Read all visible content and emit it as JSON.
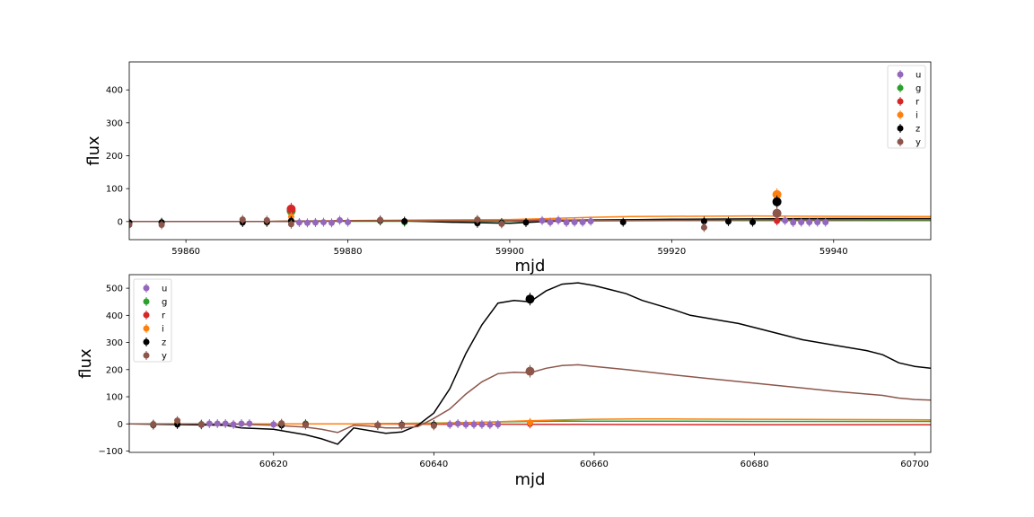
{
  "chart_data": [
    {
      "type": "scatter",
      "xlabel": "mjd",
      "ylabel": "flux",
      "xlim": [
        59853,
        59952
      ],
      "ylim": [
        -55,
        485
      ],
      "xticks": [
        59860,
        59880,
        59900,
        59920,
        59940
      ],
      "yticks": [
        0,
        100,
        200,
        300,
        400
      ],
      "legend_position": "upper right",
      "legend": [
        "u",
        "g",
        "r",
        "i",
        "z",
        "y"
      ],
      "series": [
        {
          "name": "u",
          "color": "#9467bd",
          "points": [
            [
              59874,
              -3
            ],
            [
              59875,
              -4
            ],
            [
              59876,
              -3
            ],
            [
              59877,
              -2
            ],
            [
              59878,
              -4
            ],
            [
              59879,
              4
            ],
            [
              59880,
              -2
            ],
            [
              59904,
              3
            ],
            [
              59905,
              -2
            ],
            [
              59906,
              4
            ],
            [
              59907,
              -3
            ],
            [
              59908,
              -2
            ],
            [
              59909,
              -2
            ],
            [
              59910,
              1
            ],
            [
              59934,
              3
            ],
            [
              59935,
              -3
            ],
            [
              59936,
              -2
            ],
            [
              59937,
              -2
            ],
            [
              59938,
              -2
            ],
            [
              59939,
              -2
            ]
          ],
          "model_x": [],
          "model_y": []
        },
        {
          "name": "g",
          "color": "#2ca02c",
          "points": [
            [
              59853,
              -3
            ],
            [
              59857,
              -2
            ],
            [
              59873,
              32
            ],
            [
              59884,
              2
            ],
            [
              59887,
              -2
            ],
            [
              59896,
              5
            ],
            [
              59899,
              -3
            ]
          ],
          "model_x": [
            59853,
            59870,
            59880,
            59890,
            59900,
            59910,
            59920,
            59930,
            59940,
            59952
          ],
          "model_y": [
            0,
            0,
            1,
            1,
            1,
            2,
            3,
            3,
            3,
            3
          ]
        },
        {
          "name": "r",
          "color": "#d62728",
          "points": [
            [
              59873,
              38
            ],
            [
              59933,
              2
            ]
          ],
          "model_x": [
            59853,
            59870,
            59880,
            59890,
            59900,
            59910,
            59920,
            59930,
            59940,
            59952
          ],
          "model_y": [
            0,
            0,
            2,
            3,
            4,
            5,
            6,
            6,
            6,
            6
          ]
        },
        {
          "name": "i",
          "color": "#ff7f0e",
          "points": [
            [
              59853,
              -4
            ],
            [
              59870,
              -2
            ],
            [
              59873,
              15
            ],
            [
              59933,
              82
            ]
          ],
          "model_x": [
            59853,
            59870,
            59880,
            59890,
            59900,
            59905,
            59910,
            59915,
            59920,
            59930,
            59940,
            59952
          ],
          "model_y": [
            0,
            0,
            3,
            5,
            6,
            9,
            13,
            15,
            16,
            17,
            16,
            15
          ]
        },
        {
          "name": "z",
          "color": "#000000",
          "points": [
            [
              59853,
              -3
            ],
            [
              59857,
              -3
            ],
            [
              59867,
              -3
            ],
            [
              59870,
              -2
            ],
            [
              59873,
              2
            ],
            [
              59884,
              3
            ],
            [
              59887,
              1
            ],
            [
              59896,
              -5
            ],
            [
              59899,
              -4
            ],
            [
              59902,
              -3
            ],
            [
              59914,
              -2
            ],
            [
              59924,
              1
            ],
            [
              59927,
              0
            ],
            [
              59930,
              -2
            ],
            [
              59933,
              60
            ]
          ],
          "model_x": [
            59853,
            59870,
            59880,
            59887,
            59893,
            59900,
            59905,
            59910,
            59920,
            59930,
            59940,
            59952
          ],
          "model_y": [
            0,
            0,
            2,
            2,
            -2,
            -5,
            1,
            4,
            7,
            8,
            9,
            9
          ]
        },
        {
          "name": "y",
          "color": "#8c564b",
          "points": [
            [
              59853,
              -10
            ],
            [
              59857,
              -10
            ],
            [
              59867,
              6
            ],
            [
              59870,
              4
            ],
            [
              59873,
              -8
            ],
            [
              59884,
              5
            ],
            [
              59896,
              6
            ],
            [
              59899,
              -7
            ],
            [
              59924,
              -18
            ],
            [
              59933,
              25
            ]
          ],
          "model_x": [
            59853,
            59870,
            59880,
            59890,
            59900,
            59910,
            59920,
            59930,
            59940,
            59952
          ],
          "model_y": [
            0,
            0,
            2,
            2,
            2,
            3,
            4,
            5,
            5,
            6
          ]
        }
      ]
    },
    {
      "type": "scatter",
      "xlabel": "mjd",
      "ylabel": "flux",
      "xlim": [
        60602,
        60702
      ],
      "ylim": [
        -105,
        550
      ],
      "xticks": [
        60620,
        60640,
        60660,
        60680,
        60700
      ],
      "yticks": [
        -100,
        0,
        100,
        200,
        300,
        400,
        500
      ],
      "legend_position": "upper left",
      "legend": [
        "u",
        "g",
        "r",
        "i",
        "z",
        "y"
      ],
      "series": [
        {
          "name": "u",
          "color": "#9467bd",
          "points": [
            [
              60612,
              1
            ],
            [
              60613,
              1
            ],
            [
              60614,
              1
            ],
            [
              60615,
              -2
            ],
            [
              60616,
              1
            ],
            [
              60617,
              1
            ],
            [
              60620,
              -2
            ],
            [
              60642,
              -2
            ],
            [
              60643,
              1
            ],
            [
              60644,
              -2
            ],
            [
              60645,
              -2
            ],
            [
              60646,
              -2
            ],
            [
              60647,
              -3
            ],
            [
              60648,
              -2
            ]
          ],
          "model_x": [],
          "model_y": []
        },
        {
          "name": "g",
          "color": "#2ca02c",
          "points": [
            [
              60605,
              -1
            ],
            [
              60608,
              2
            ],
            [
              60611,
              -1
            ],
            [
              60621,
              -1
            ],
            [
              60624,
              1
            ]
          ],
          "model_x": [
            60602,
            60630,
            60640,
            60650,
            60655,
            60660,
            60670,
            60680,
            60690,
            60702
          ],
          "model_y": [
            0,
            0,
            3,
            8,
            10,
            10,
            10,
            9,
            9,
            9
          ]
        },
        {
          "name": "r",
          "color": "#d62728",
          "points": [
            [
              60624,
              -1
            ],
            [
              60652,
              0
            ]
          ],
          "model_x": [
            60602,
            60630,
            60640,
            60645,
            60650,
            60660,
            60680,
            60702
          ],
          "model_y": [
            0,
            0,
            -1,
            -1,
            -1,
            -2,
            -3,
            -3
          ]
        },
        {
          "name": "i",
          "color": "#ff7f0e",
          "points": [
            [
              60608,
              2
            ],
            [
              60652,
              5
            ]
          ],
          "model_x": [
            60602,
            60630,
            60640,
            60645,
            60650,
            60655,
            60660,
            60665,
            60670,
            60680,
            60690,
            60702
          ],
          "model_y": [
            0,
            0,
            2,
            5,
            10,
            14,
            17,
            18,
            18,
            17,
            16,
            15
          ]
        },
        {
          "name": "z",
          "color": "#000000",
          "points": [
            [
              60605,
              -4
            ],
            [
              60608,
              -2
            ],
            [
              60611,
              -3
            ],
            [
              60621,
              -5
            ],
            [
              60624,
              -3
            ],
            [
              60633,
              -5
            ],
            [
              60636,
              -3
            ],
            [
              60640,
              -3
            ],
            [
              60652,
              460
            ]
          ],
          "model_x": [
            60602,
            60614,
            60616,
            60620,
            60624,
            60626,
            60628,
            60630,
            60634,
            60636,
            60638,
            60640,
            60642,
            60644,
            60646,
            60648,
            60650,
            60652,
            60654,
            60656,
            60658,
            60660,
            60662,
            60664,
            60666,
            60670,
            60672,
            60676,
            60678,
            60680,
            60684,
            60686,
            60690,
            60694,
            60696,
            60698,
            60700,
            60702
          ],
          "model_y": [
            0,
            -5,
            -15,
            -20,
            -40,
            -55,
            -75,
            -15,
            -35,
            -30,
            -5,
            40,
            130,
            260,
            365,
            445,
            455,
            450,
            490,
            515,
            520,
            510,
            495,
            480,
            455,
            420,
            400,
            380,
            370,
            355,
            325,
            310,
            290,
            270,
            255,
            225,
            212,
            205
          ]
        },
        {
          "name": "y",
          "color": "#8c564b",
          "points": [
            [
              60605,
              -2
            ],
            [
              60608,
              12
            ],
            [
              60611,
              -2
            ],
            [
              60621,
              2
            ],
            [
              60624,
              -4
            ],
            [
              60633,
              -5
            ],
            [
              60636,
              -5
            ],
            [
              60640,
              -7
            ],
            [
              60652,
              194
            ]
          ],
          "model_x": [
            60602,
            60614,
            60620,
            60624,
            60626,
            60628,
            60630,
            60632,
            60634,
            60636,
            60638,
            60640,
            60642,
            60644,
            60646,
            60648,
            60650,
            60652,
            60654,
            60656,
            60658,
            60660,
            60664,
            60670,
            60674,
            60680,
            60684,
            60690,
            60696,
            60698,
            60700,
            60702
          ],
          "model_y": [
            0,
            0,
            -5,
            -12,
            -20,
            -32,
            -5,
            -8,
            -15,
            -15,
            -10,
            20,
            55,
            110,
            155,
            185,
            190,
            188,
            205,
            215,
            218,
            212,
            200,
            180,
            168,
            150,
            138,
            120,
            105,
            95,
            90,
            88
          ]
        }
      ]
    }
  ]
}
